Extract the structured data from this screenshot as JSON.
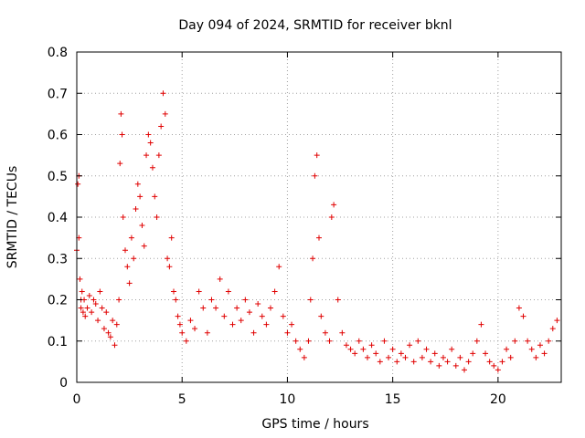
{
  "chart_data": {
    "type": "scatter",
    "title": "Day 094 of 2024, SRMTID for receiver bknl",
    "xlabel": "GPS time / hours",
    "ylabel": "SRMTID / TECUs",
    "xlim": [
      0,
      23
    ],
    "ylim": [
      0,
      0.8
    ],
    "x_ticks": [
      0,
      5,
      10,
      15,
      20
    ],
    "y_ticks": [
      0,
      0.1,
      0.2,
      0.3,
      0.4,
      0.5,
      0.6,
      0.7,
      0.8
    ],
    "x_tick_labels": [
      "0",
      "5",
      "10",
      "15",
      "20"
    ],
    "y_tick_labels": [
      "0",
      "0.1",
      "0.2",
      "0.3",
      "0.4",
      "0.5",
      "0.6",
      "0.7",
      "0.8"
    ],
    "grid": true,
    "marker": "+",
    "series_color": "#e00000",
    "series": [
      {
        "name": "SRMTID",
        "x": [
          0.0,
          0.05,
          0.1,
          0.1,
          0.15,
          0.2,
          0.2,
          0.25,
          0.3,
          0.35,
          0.4,
          0.5,
          0.6,
          0.7,
          0.8,
          0.9,
          1.0,
          1.1,
          1.2,
          1.3,
          1.4,
          1.5,
          1.6,
          1.7,
          1.8,
          1.9,
          2.0,
          2.05,
          2.1,
          2.15,
          2.2,
          2.3,
          2.4,
          2.5,
          2.6,
          2.7,
          2.8,
          2.9,
          3.0,
          3.1,
          3.2,
          3.3,
          3.4,
          3.5,
          3.6,
          3.7,
          3.8,
          3.9,
          4.0,
          4.1,
          4.2,
          4.3,
          4.4,
          4.5,
          4.6,
          4.7,
          4.8,
          4.9,
          5.0,
          5.2,
          5.4,
          5.6,
          5.8,
          6.0,
          6.2,
          6.4,
          6.6,
          6.8,
          7.0,
          7.2,
          7.4,
          7.6,
          7.8,
          8.0,
          8.2,
          8.4,
          8.6,
          8.8,
          9.0,
          9.2,
          9.4,
          9.6,
          9.8,
          10.0,
          10.2,
          10.4,
          10.6,
          10.8,
          11.0,
          11.1,
          11.2,
          11.3,
          11.4,
          11.5,
          11.6,
          11.8,
          12.0,
          12.1,
          12.2,
          12.4,
          12.6,
          12.8,
          13.0,
          13.2,
          13.4,
          13.6,
          13.8,
          14.0,
          14.2,
          14.4,
          14.6,
          14.8,
          15.0,
          15.2,
          15.4,
          15.6,
          15.8,
          16.0,
          16.2,
          16.4,
          16.6,
          16.8,
          17.0,
          17.2,
          17.4,
          17.6,
          17.8,
          18.0,
          18.2,
          18.4,
          18.6,
          18.8,
          19.0,
          19.2,
          19.4,
          19.6,
          19.8,
          20.0,
          20.2,
          20.4,
          20.6,
          20.8,
          21.0,
          21.2,
          21.4,
          21.6,
          21.8,
          22.0,
          22.2,
          22.4,
          22.6,
          22.8
        ],
        "y": [
          0.32,
          0.48,
          0.5,
          0.35,
          0.25,
          0.2,
          0.18,
          0.22,
          0.17,
          0.2,
          0.16,
          0.18,
          0.21,
          0.17,
          0.2,
          0.19,
          0.15,
          0.22,
          0.18,
          0.13,
          0.17,
          0.12,
          0.11,
          0.15,
          0.09,
          0.14,
          0.2,
          0.53,
          0.65,
          0.6,
          0.4,
          0.32,
          0.28,
          0.24,
          0.35,
          0.3,
          0.42,
          0.48,
          0.45,
          0.38,
          0.33,
          0.55,
          0.6,
          0.58,
          0.52,
          0.45,
          0.4,
          0.55,
          0.62,
          0.7,
          0.65,
          0.3,
          0.28,
          0.35,
          0.22,
          0.2,
          0.16,
          0.14,
          0.12,
          0.1,
          0.15,
          0.13,
          0.22,
          0.18,
          0.12,
          0.2,
          0.18,
          0.25,
          0.16,
          0.22,
          0.14,
          0.18,
          0.15,
          0.2,
          0.17,
          0.12,
          0.19,
          0.16,
          0.14,
          0.18,
          0.22,
          0.28,
          0.16,
          0.12,
          0.14,
          0.1,
          0.08,
          0.06,
          0.1,
          0.2,
          0.3,
          0.5,
          0.55,
          0.35,
          0.16,
          0.12,
          0.1,
          0.4,
          0.43,
          0.2,
          0.12,
          0.09,
          0.08,
          0.07,
          0.1,
          0.08,
          0.06,
          0.09,
          0.07,
          0.05,
          0.1,
          0.06,
          0.08,
          0.05,
          0.07,
          0.06,
          0.09,
          0.05,
          0.1,
          0.06,
          0.08,
          0.05,
          0.07,
          0.04,
          0.06,
          0.05,
          0.08,
          0.04,
          0.06,
          0.03,
          0.05,
          0.07,
          0.1,
          0.14,
          0.07,
          0.05,
          0.04,
          0.03,
          0.05,
          0.08,
          0.06,
          0.1,
          0.18,
          0.16,
          0.1,
          0.08,
          0.06,
          0.09,
          0.07,
          0.1,
          0.13,
          0.15
        ]
      }
    ]
  }
}
